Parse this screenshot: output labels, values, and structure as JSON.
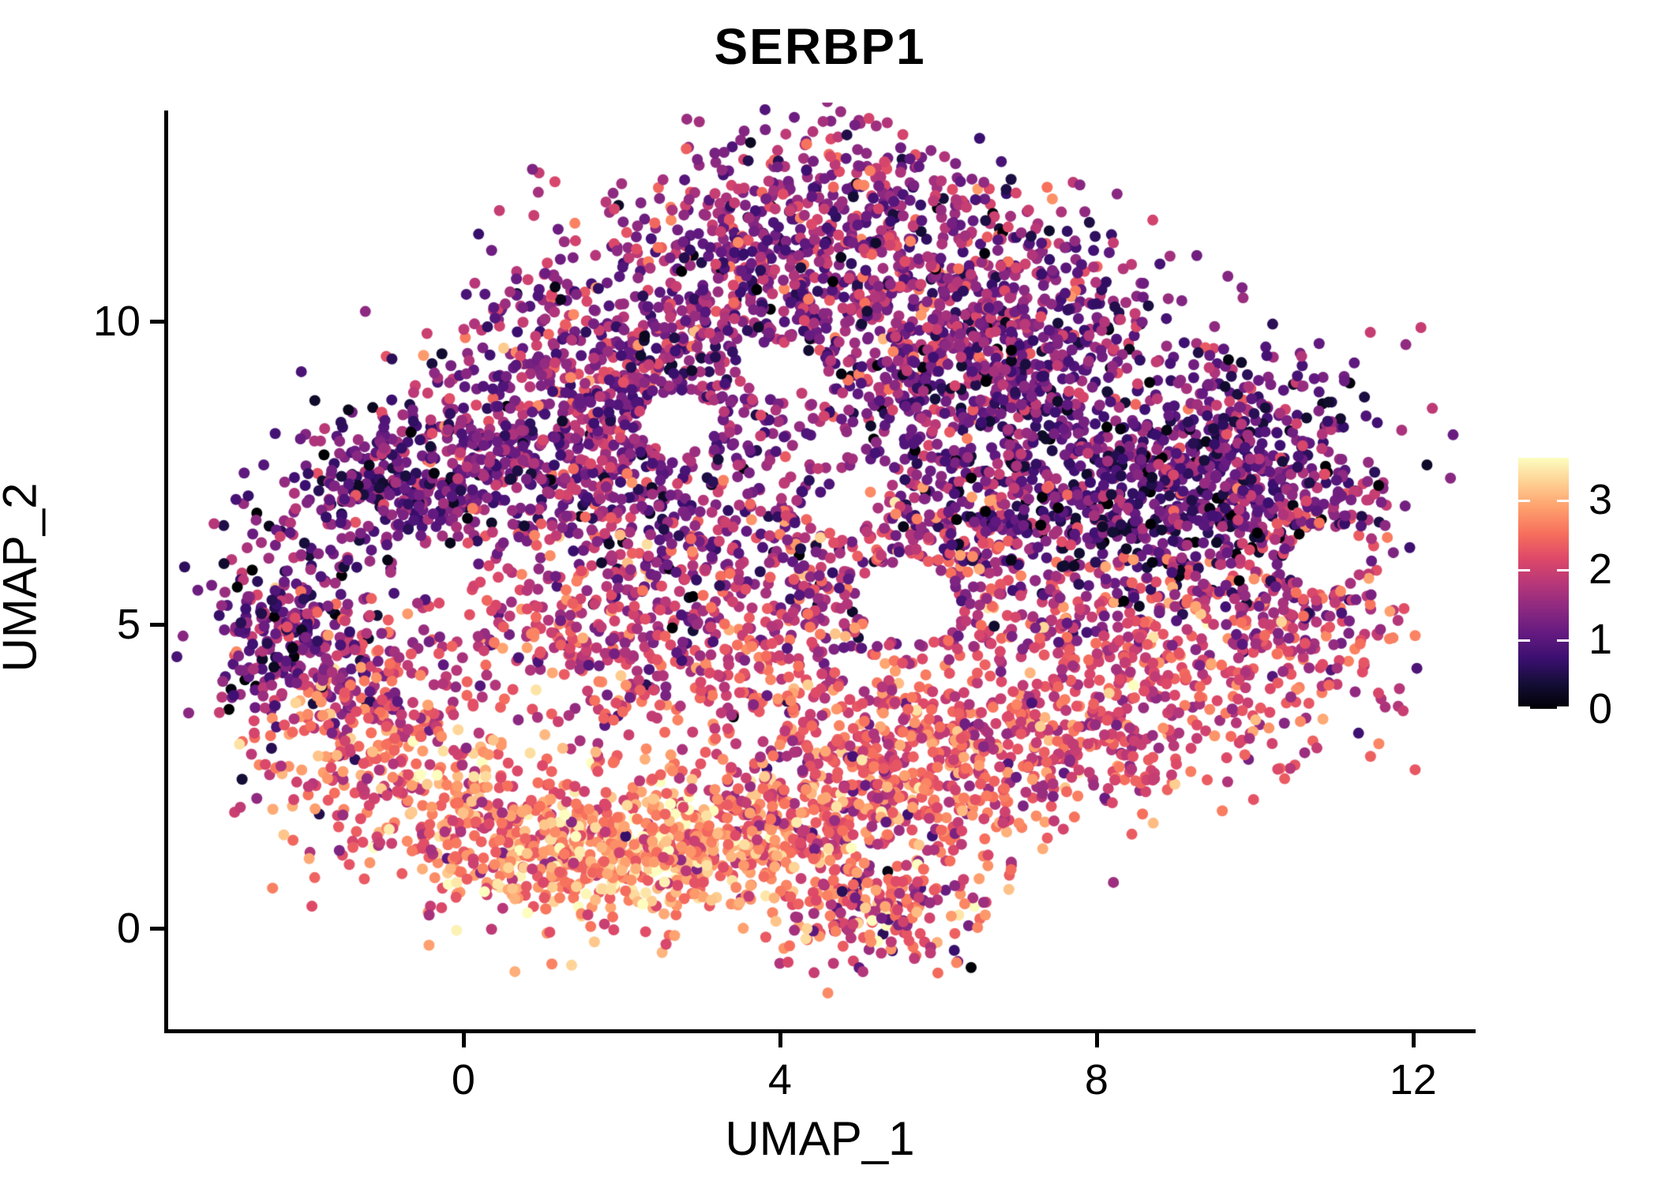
{
  "title": "SERBP1",
  "axes": {
    "x_label": "UMAP_1",
    "y_label": "UMAP_2"
  },
  "colors": {
    "background": "#ffffff",
    "axis": "#000000",
    "text": "#000000"
  },
  "chart_data": {
    "type": "scatter",
    "title": "SERBP1",
    "xlabel": "UMAP_1",
    "ylabel": "UMAP_2",
    "xlim": [
      -3.76,
      12.77
    ],
    "ylim": [
      -1.68,
      13.47
    ],
    "x_ticks": [
      0,
      4,
      8,
      12
    ],
    "y_ticks": [
      0,
      5,
      10
    ],
    "grid": false,
    "legend_position": "right",
    "axis_lines": [
      "left",
      "bottom"
    ],
    "point_radius_px": 7,
    "seed": 42,
    "colorbar": {
      "ticks": [
        0,
        1,
        2,
        3
      ],
      "vmin": 0,
      "vmax": 3.6
    },
    "colormap": {
      "name": "magma",
      "stops": [
        [
          0.0,
          "#000004"
        ],
        [
          0.1,
          "#140e36"
        ],
        [
          0.2,
          "#3b0f70"
        ],
        [
          0.3,
          "#641a80"
        ],
        [
          0.4,
          "#8c2981"
        ],
        [
          0.5,
          "#b73779"
        ],
        [
          0.6,
          "#de4968"
        ],
        [
          0.7,
          "#f7705c"
        ],
        [
          0.8,
          "#fe9f6d"
        ],
        [
          0.9,
          "#fecf92"
        ],
        [
          1.0,
          "#fcfdbf"
        ]
      ]
    },
    "clusters": [
      {
        "cx": 4.6,
        "cy": 11.9,
        "sx": 1.05,
        "sy": 0.7,
        "n": 310,
        "v": 1.5,
        "sd": 0.6
      },
      {
        "cx": 3.2,
        "cy": 10.6,
        "sx": 1.25,
        "sy": 0.85,
        "n": 330,
        "v": 1.45,
        "sd": 0.6
      },
      {
        "cx": 5.8,
        "cy": 10.8,
        "sx": 1.25,
        "sy": 0.85,
        "n": 330,
        "v": 1.4,
        "sd": 0.6
      },
      {
        "cx": 7.3,
        "cy": 9.9,
        "sx": 1.0,
        "sy": 0.7,
        "n": 230,
        "v": 1.3,
        "sd": 0.55
      },
      {
        "cx": 1.3,
        "cy": 9.3,
        "sx": 1.0,
        "sy": 0.75,
        "n": 250,
        "v": 1.5,
        "sd": 0.6
      },
      {
        "cx": 0.3,
        "cy": 7.9,
        "sx": 0.9,
        "sy": 0.65,
        "n": 260,
        "v": 1.2,
        "sd": 0.5
      },
      {
        "cx": -0.9,
        "cy": 7.2,
        "sx": 0.7,
        "sy": 0.55,
        "n": 240,
        "v": 1.1,
        "sd": 0.5
      },
      {
        "cx": 1.8,
        "cy": 7.2,
        "sx": 0.9,
        "sy": 0.75,
        "n": 240,
        "v": 1.4,
        "sd": 0.6
      },
      {
        "cx": -2.2,
        "cy": 5.0,
        "sx": 0.55,
        "sy": 0.85,
        "n": 260,
        "v": 1.2,
        "sd": 0.6
      },
      {
        "cx": -1.3,
        "cy": 3.9,
        "sx": 0.6,
        "sy": 0.65,
        "n": 170,
        "v": 1.8,
        "sd": 0.6
      },
      {
        "cx": 8.6,
        "cy": 7.0,
        "sx": 1.15,
        "sy": 0.95,
        "n": 520,
        "v": 0.9,
        "sd": 0.55
      },
      {
        "cx": 6.8,
        "cy": 8.3,
        "sx": 1.2,
        "sy": 0.9,
        "n": 350,
        "v": 1.2,
        "sd": 0.6
      },
      {
        "cx": 9.9,
        "cy": 7.6,
        "sx": 0.85,
        "sy": 0.75,
        "n": 260,
        "v": 1.1,
        "sd": 0.55
      },
      {
        "cx": 6.1,
        "cy": 6.4,
        "sx": 0.9,
        "sy": 0.8,
        "n": 240,
        "v": 1.5,
        "sd": 0.6
      },
      {
        "cx": 3.8,
        "cy": 5.9,
        "sx": 1.3,
        "sy": 0.9,
        "n": 320,
        "v": 1.6,
        "sd": 0.65
      },
      {
        "cx": 1.6,
        "cy": 4.8,
        "sx": 1.2,
        "sy": 0.9,
        "n": 300,
        "v": 2.0,
        "sd": 0.5
      },
      {
        "cx": 4.6,
        "cy": 4.0,
        "sx": 1.5,
        "sy": 0.8,
        "n": 300,
        "v": 2.2,
        "sd": 0.45
      },
      {
        "cx": -0.9,
        "cy": 2.4,
        "sx": 0.8,
        "sy": 0.75,
        "n": 250,
        "v": 2.4,
        "sd": 0.5
      },
      {
        "cx": 0.6,
        "cy": 1.5,
        "sx": 0.9,
        "sy": 0.6,
        "n": 280,
        "v": 2.6,
        "sd": 0.5
      },
      {
        "cx": 2.2,
        "cy": 1.1,
        "sx": 0.9,
        "sy": 0.55,
        "n": 330,
        "v": 2.9,
        "sd": 0.45
      },
      {
        "cx": 3.6,
        "cy": 1.6,
        "sx": 0.9,
        "sy": 0.6,
        "n": 300,
        "v": 2.5,
        "sd": 0.5
      },
      {
        "cx": 5.2,
        "cy": 2.3,
        "sx": 1.1,
        "sy": 0.7,
        "n": 320,
        "v": 2.3,
        "sd": 0.5
      },
      {
        "cx": 5.3,
        "cy": 0.3,
        "sx": 0.65,
        "sy": 0.45,
        "n": 200,
        "v": 2.3,
        "sd": 0.8
      },
      {
        "cx": 7.0,
        "cy": 2.9,
        "sx": 1.2,
        "sy": 0.7,
        "n": 280,
        "v": 2.2,
        "sd": 0.45
      },
      {
        "cx": 9.0,
        "cy": 3.8,
        "sx": 1.1,
        "sy": 0.8,
        "n": 240,
        "v": 2.1,
        "sd": 0.45
      },
      {
        "cx": 10.5,
        "cy": 5.3,
        "sx": 0.65,
        "sy": 0.9,
        "n": 170,
        "v": 1.9,
        "sd": 0.5
      },
      {
        "cx": 11.1,
        "cy": 6.5,
        "sx": 0.3,
        "sy": 0.55,
        "n": 60,
        "v": 1.6,
        "sd": 0.6
      },
      {
        "cx": 8.3,
        "cy": 5.0,
        "sx": 1.2,
        "sy": 0.6,
        "n": 200,
        "v": 1.9,
        "sd": 0.6
      },
      {
        "cx": 5.6,
        "cy": 9.4,
        "sx": 1.6,
        "sy": 0.65,
        "n": 260,
        "v": 1.3,
        "sd": 0.6
      },
      {
        "cx": 2.6,
        "cy": 8.4,
        "sx": 0.8,
        "sy": 0.6,
        "n": 170,
        "v": 1.3,
        "sd": 0.55
      },
      {
        "cx": 10.3,
        "cy": 8.6,
        "sx": 0.7,
        "sy": 0.6,
        "n": 90,
        "v": 1.3,
        "sd": 0.55
      }
    ],
    "holes": [
      [
        2.7,
        8.35,
        0.5
      ],
      [
        3.95,
        9.2,
        0.45
      ],
      [
        5.6,
        5.4,
        0.65
      ],
      [
        10.9,
        6.1,
        0.5
      ],
      [
        4.8,
        6.9,
        0.4
      ],
      [
        -0.3,
        5.9,
        0.45
      ]
    ]
  }
}
